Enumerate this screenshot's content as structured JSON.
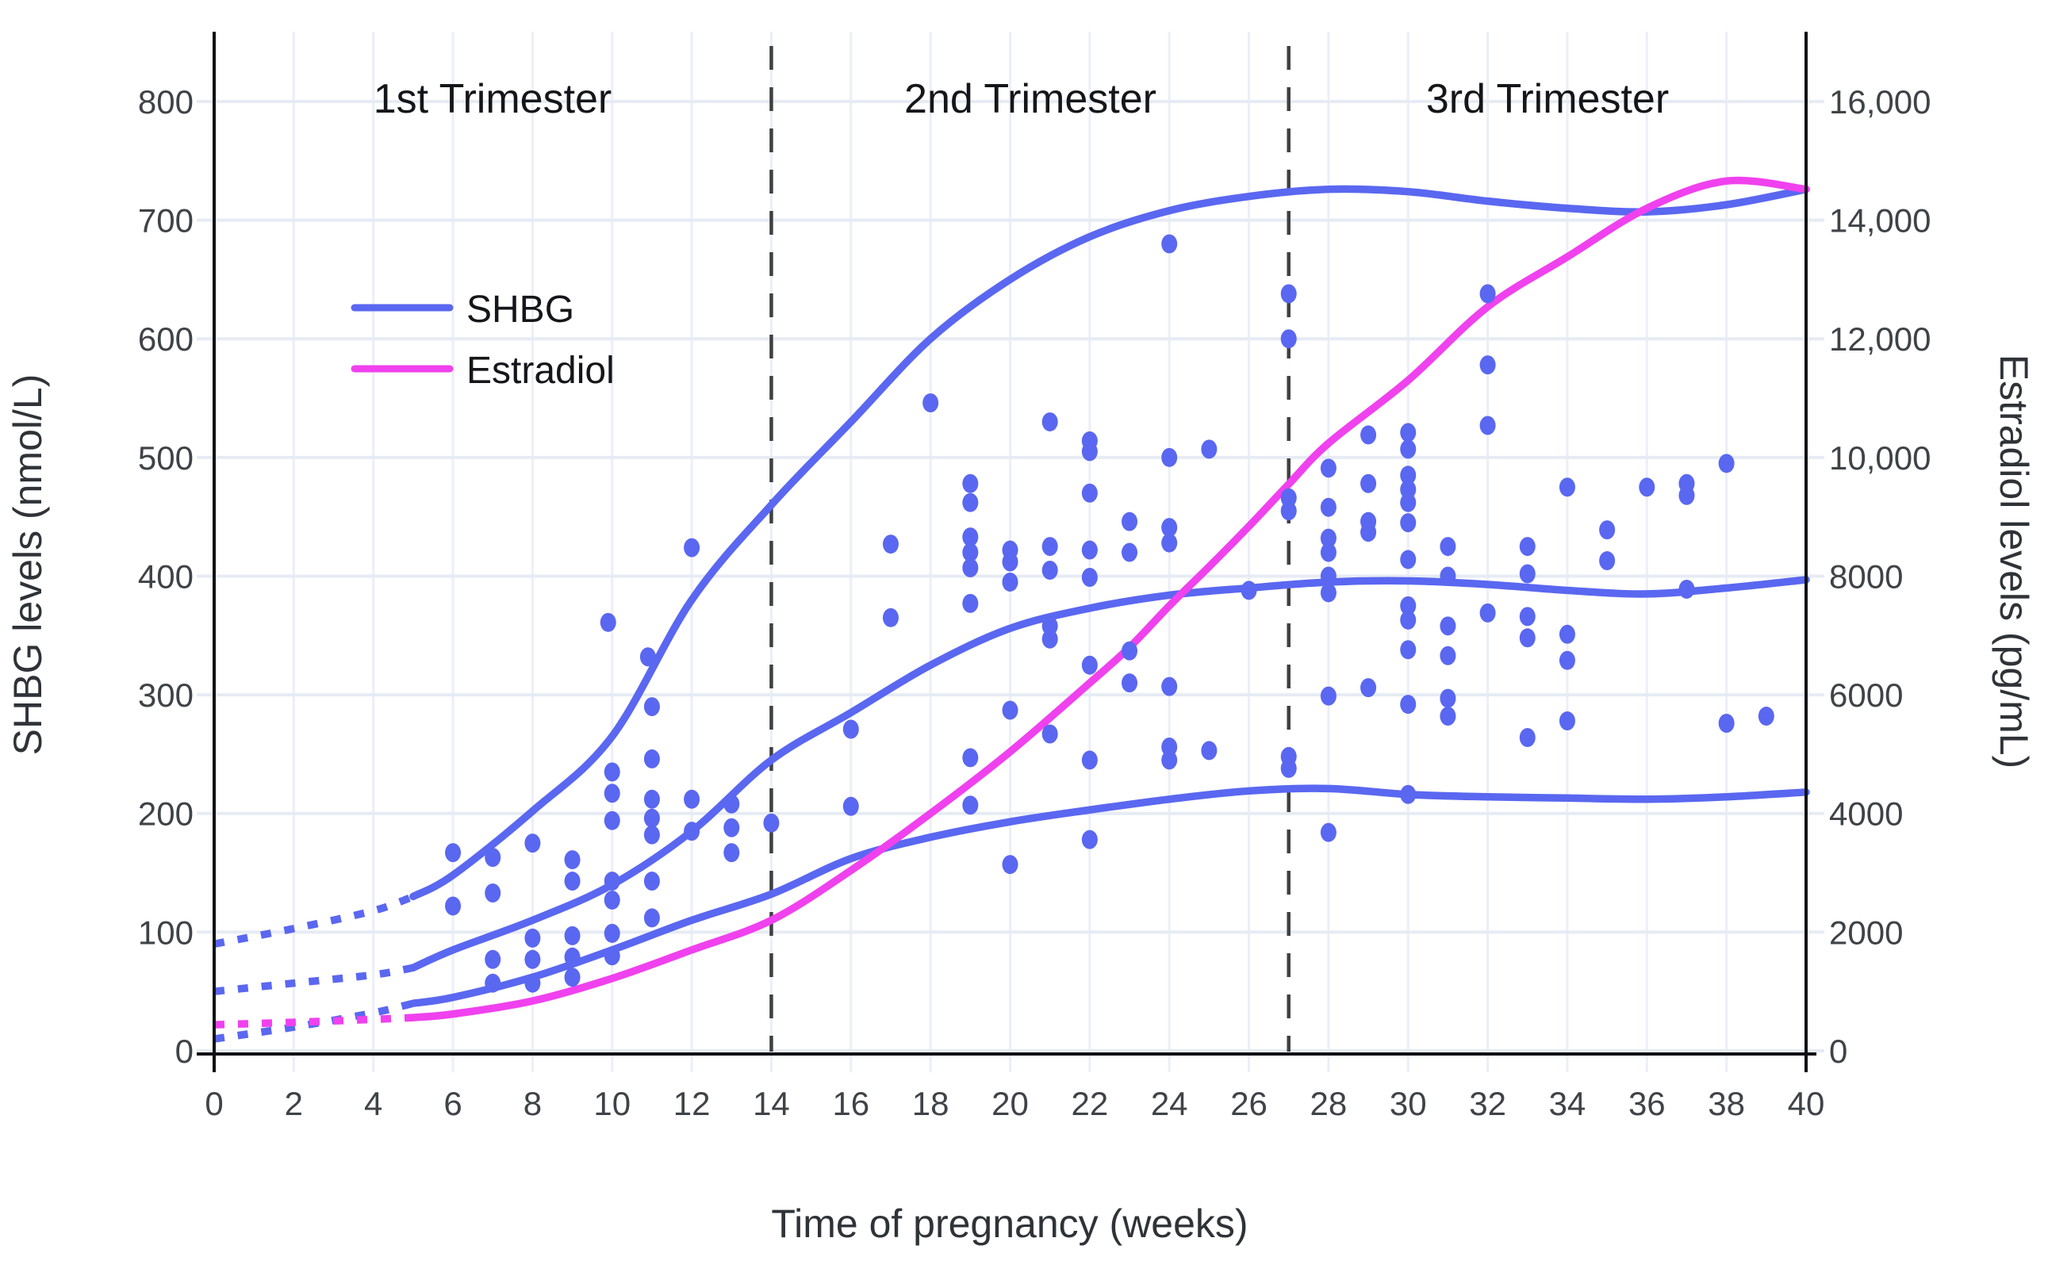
{
  "chart_data": {
    "type": "scatter",
    "x_axis": {
      "label": "Time of pregnancy (weeks)",
      "range": [
        0,
        40
      ],
      "ticks": [
        0,
        2,
        4,
        6,
        8,
        10,
        12,
        14,
        16,
        18,
        20,
        22,
        24,
        26,
        28,
        30,
        32,
        34,
        36,
        38,
        40
      ]
    },
    "y_left": {
      "label": "SHBG levels (nmol/L)",
      "range": [
        0,
        800
      ],
      "ticks": [
        0,
        100,
        200,
        300,
        400,
        500,
        600,
        700,
        800
      ]
    },
    "y_right": {
      "label": "Estradiol levels (pg/mL)",
      "range": [
        0,
        16000
      ],
      "ticks": [
        {
          "value": 0,
          "label": "0"
        },
        {
          "value": 2000,
          "label": "2000"
        },
        {
          "value": 4000,
          "label": "4000"
        },
        {
          "value": 6000,
          "label": "6000"
        },
        {
          "value": 8000,
          "label": "8000"
        },
        {
          "value": 10000,
          "label": "10,000"
        },
        {
          "value": 12000,
          "label": "12,000"
        },
        {
          "value": 14000,
          "label": "14,000"
        },
        {
          "value": 16000,
          "label": "16,000"
        }
      ]
    },
    "legend": [
      {
        "name": "SHBG",
        "color": "#5a67f0"
      },
      {
        "name": "Estradiol",
        "color": "#f041ee"
      }
    ],
    "annotations": {
      "trimesters": [
        {
          "label": "1st Trimester",
          "center_week": 7
        },
        {
          "label": "2nd Trimester",
          "center_week": 20.5
        },
        {
          "label": "3rd Trimester",
          "center_week": 33.5
        }
      ],
      "divider_weeks": [
        14,
        27
      ]
    },
    "style": {
      "shbg_color": "#5a67f0",
      "estradiol_color": "#f041ee",
      "point_color": "#5a67f0",
      "grid_h_color": "#e6ebf4",
      "grid_v_color": "#eceef9",
      "divider_color": "#3f4043",
      "axis_color": "#101114",
      "tick_text_color": "#3f4347",
      "axis_title_color": "#2f3337",
      "annotation_text_color": "#141619",
      "background": "#ffffff"
    },
    "dotted_until_week": 5,
    "series": {
      "shbg_upper_nmol_l": [
        [
          0,
          90
        ],
        [
          2,
          103
        ],
        [
          4,
          118
        ],
        [
          5,
          130
        ],
        [
          6,
          148
        ],
        [
          8,
          202
        ],
        [
          10,
          265
        ],
        [
          12,
          380
        ],
        [
          14,
          460
        ],
        [
          16,
          530
        ],
        [
          18,
          600
        ],
        [
          20,
          650
        ],
        [
          22,
          686
        ],
        [
          24,
          708
        ],
        [
          26,
          720
        ],
        [
          28,
          726
        ],
        [
          30,
          724
        ],
        [
          32,
          716
        ],
        [
          34,
          710
        ],
        [
          36,
          707
        ],
        [
          38,
          713
        ],
        [
          40,
          726
        ]
      ],
      "shbg_median_nmol_l": [
        [
          0,
          50
        ],
        [
          2,
          57
        ],
        [
          4,
          64
        ],
        [
          5,
          70
        ],
        [
          6,
          85
        ],
        [
          8,
          110
        ],
        [
          10,
          140
        ],
        [
          12,
          185
        ],
        [
          14,
          245
        ],
        [
          16,
          285
        ],
        [
          18,
          325
        ],
        [
          20,
          356
        ],
        [
          22,
          373
        ],
        [
          24,
          384
        ],
        [
          26,
          390
        ],
        [
          28,
          395
        ],
        [
          30,
          396
        ],
        [
          32,
          393
        ],
        [
          34,
          388
        ],
        [
          36,
          385
        ],
        [
          38,
          390
        ],
        [
          40,
          397
        ]
      ],
      "shbg_lower_nmol_l": [
        [
          0,
          10
        ],
        [
          2,
          20
        ],
        [
          4,
          32
        ],
        [
          5,
          40
        ],
        [
          6,
          45
        ],
        [
          8,
          62
        ],
        [
          10,
          85
        ],
        [
          12,
          110
        ],
        [
          14,
          132
        ],
        [
          16,
          162
        ],
        [
          18,
          180
        ],
        [
          20,
          193
        ],
        [
          22,
          203
        ],
        [
          24,
          212
        ],
        [
          26,
          219
        ],
        [
          28,
          221
        ],
        [
          30,
          216
        ],
        [
          32,
          214
        ],
        [
          34,
          213
        ],
        [
          36,
          212
        ],
        [
          38,
          214
        ],
        [
          40,
          218
        ]
      ],
      "estradiol_pg_ml": [
        [
          0,
          440
        ],
        [
          2,
          480
        ],
        [
          4,
          530
        ],
        [
          5,
          560
        ],
        [
          6,
          620
        ],
        [
          8,
          840
        ],
        [
          10,
          1220
        ],
        [
          12,
          1700
        ],
        [
          14,
          2200
        ],
        [
          16,
          3040
        ],
        [
          18,
          4000
        ],
        [
          20,
          5040
        ],
        [
          22,
          6200
        ],
        [
          23,
          6800
        ],
        [
          24,
          7500
        ],
        [
          25,
          8160
        ],
        [
          26,
          8840
        ],
        [
          27,
          9550
        ],
        [
          28,
          10240
        ],
        [
          30,
          11300
        ],
        [
          32,
          12540
        ],
        [
          34,
          13380
        ],
        [
          36,
          14200
        ],
        [
          38,
          14660
        ],
        [
          40,
          14520
        ]
      ]
    },
    "scatter_shbg_nmol_l": [
      [
        6,
        167
      ],
      [
        6,
        122
      ],
      [
        7,
        163
      ],
      [
        7,
        133
      ],
      [
        7,
        77
      ],
      [
        7,
        57
      ],
      [
        8,
        175
      ],
      [
        8,
        95
      ],
      [
        8,
        77
      ],
      [
        8,
        57
      ],
      [
        9,
        161
      ],
      [
        9,
        143
      ],
      [
        9,
        97
      ],
      [
        9,
        79
      ],
      [
        9,
        62
      ],
      [
        9.9,
        361
      ],
      [
        10,
        235
      ],
      [
        10,
        217
      ],
      [
        10,
        194
      ],
      [
        10,
        143
      ],
      [
        10,
        127
      ],
      [
        10,
        99
      ],
      [
        10,
        80
      ],
      [
        10.9,
        332
      ],
      [
        11,
        290
      ],
      [
        11,
        246
      ],
      [
        11,
        212
      ],
      [
        11,
        196
      ],
      [
        11,
        182
      ],
      [
        11,
        143
      ],
      [
        11,
        112
      ],
      [
        12,
        424
      ],
      [
        12,
        212
      ],
      [
        12,
        185
      ],
      [
        13,
        208
      ],
      [
        13,
        188
      ],
      [
        13,
        167
      ],
      [
        14,
        192
      ],
      [
        16,
        271
      ],
      [
        16,
        206
      ],
      [
        17,
        427
      ],
      [
        17,
        365
      ],
      [
        18,
        546
      ],
      [
        19,
        478
      ],
      [
        19,
        462
      ],
      [
        19,
        433
      ],
      [
        19,
        420
      ],
      [
        19,
        407
      ],
      [
        19,
        377
      ],
      [
        19,
        247
      ],
      [
        19,
        207
      ],
      [
        20,
        422
      ],
      [
        20,
        412
      ],
      [
        20,
        395
      ],
      [
        20,
        287
      ],
      [
        20,
        157
      ],
      [
        21,
        530
      ],
      [
        21,
        425
      ],
      [
        21,
        405
      ],
      [
        21,
        358
      ],
      [
        21,
        347
      ],
      [
        21,
        267
      ],
      [
        22,
        514
      ],
      [
        22,
        505
      ],
      [
        22,
        470
      ],
      [
        22,
        422
      ],
      [
        22,
        399
      ],
      [
        22,
        325
      ],
      [
        22,
        245
      ],
      [
        22,
        178
      ],
      [
        23,
        446
      ],
      [
        23,
        420
      ],
      [
        23,
        337
      ],
      [
        23,
        310
      ],
      [
        24,
        680
      ],
      [
        24,
        500
      ],
      [
        24,
        441
      ],
      [
        24,
        428
      ],
      [
        24,
        307
      ],
      [
        24,
        256
      ],
      [
        24,
        245
      ],
      [
        25,
        507
      ],
      [
        25,
        253
      ],
      [
        26,
        388
      ],
      [
        27,
        638
      ],
      [
        27,
        600
      ],
      [
        27,
        466
      ],
      [
        27,
        455
      ],
      [
        27,
        248
      ],
      [
        27,
        238
      ],
      [
        28,
        491
      ],
      [
        28,
        458
      ],
      [
        28,
        432
      ],
      [
        28,
        420
      ],
      [
        28,
        400
      ],
      [
        28,
        386
      ],
      [
        28,
        299
      ],
      [
        28,
        184
      ],
      [
        29,
        519
      ],
      [
        29,
        478
      ],
      [
        29,
        446
      ],
      [
        29,
        437
      ],
      [
        29,
        306
      ],
      [
        30,
        521
      ],
      [
        30,
        507
      ],
      [
        30,
        485
      ],
      [
        30,
        473
      ],
      [
        30,
        462
      ],
      [
        30,
        445
      ],
      [
        30,
        414
      ],
      [
        30,
        375
      ],
      [
        30,
        363
      ],
      [
        30,
        338
      ],
      [
        30,
        292
      ],
      [
        30,
        216
      ],
      [
        31,
        425
      ],
      [
        31,
        400
      ],
      [
        31,
        358
      ],
      [
        31,
        333
      ],
      [
        31,
        297
      ],
      [
        31,
        282
      ],
      [
        32,
        638
      ],
      [
        32,
        578
      ],
      [
        32,
        527
      ],
      [
        32,
        369
      ],
      [
        33,
        425
      ],
      [
        33,
        402
      ],
      [
        33,
        366
      ],
      [
        33,
        348
      ],
      [
        33,
        264
      ],
      [
        34,
        475
      ],
      [
        34,
        351
      ],
      [
        34,
        329
      ],
      [
        34,
        278
      ],
      [
        35,
        439
      ],
      [
        35,
        413
      ],
      [
        36,
        475
      ],
      [
        37,
        478
      ],
      [
        37,
        468
      ],
      [
        37,
        389
      ],
      [
        38,
        495
      ],
      [
        38,
        276
      ],
      [
        39,
        282
      ]
    ]
  }
}
